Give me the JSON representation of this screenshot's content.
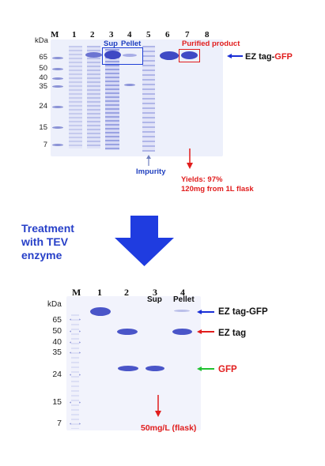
{
  "top_gel": {
    "kda_label": "kDa",
    "lane_labels": [
      "M",
      "1",
      "2",
      "3",
      "4",
      "5",
      "6",
      "7",
      "8"
    ],
    "mw_markers": [
      "65",
      "50",
      "40",
      "35",
      "24",
      "15",
      "7"
    ],
    "sup_label": "Sup",
    "pellet_label": "Pellet",
    "purified_label": "Purified product",
    "target_band_label_prefix": "EZ tag-",
    "target_band_label_suffix": "GFP",
    "impurity_label": "Impurity",
    "yield_line1": "Yields: 97%",
    "yield_line2": "120mg from 1L flask"
  },
  "treatment": {
    "line1": "Treatment",
    "line2": "with TEV",
    "line3": "enzyme"
  },
  "bottom_gel": {
    "kda_label": "kDa",
    "lane_labels": [
      "M",
      "1",
      "2",
      "3",
      "4"
    ],
    "sup_label": "Sup",
    "pellet_label": "Pellet",
    "mw_markers": [
      "65",
      "50",
      "40",
      "35",
      "24",
      "15",
      "7"
    ],
    "band_label_fusion": "EZ tag-GFP",
    "band_label_tag": "EZ tag",
    "band_label_gfp": "GFP",
    "yield_text": "50mg/L (flask)"
  },
  "colors": {
    "gel_background": "#eef0fb",
    "band_blue": "#4a55c8",
    "arrow_blue": "#1a2fd6",
    "arrow_red": "#e11d1d",
    "arrow_green": "#22c232",
    "treatment_text": "#2740c8",
    "big_arrow": "#1f3ce0"
  }
}
